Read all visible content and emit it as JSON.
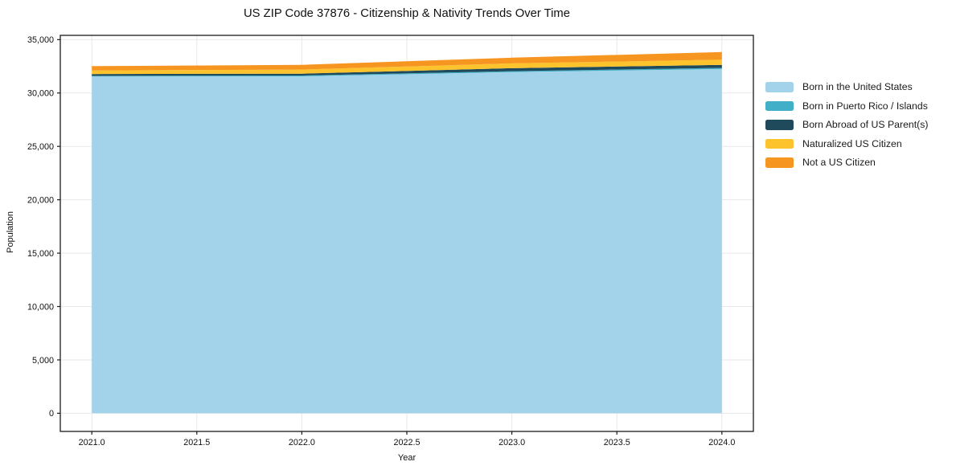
{
  "chart_data": {
    "type": "area",
    "stacked": true,
    "title": "US ZIP Code 37876 - Citizenship & Nativity Trends Over Time",
    "xlabel": "Year",
    "ylabel": "Population",
    "x": [
      2021,
      2022,
      2023,
      2024
    ],
    "series": [
      {
        "name": "Born in the United States",
        "color": "#a3d3ea",
        "values": [
          31540,
          31560,
          31950,
          32250
        ]
      },
      {
        "name": "Born in Puerto Rico / Islands",
        "color": "#41afc7",
        "values": [
          70,
          80,
          90,
          100
        ]
      },
      {
        "name": "Born Abroad of US Parent(s)",
        "color": "#1f4a5c",
        "values": [
          160,
          170,
          285,
          280
        ]
      },
      {
        "name": "Naturalized US Citizen",
        "color": "#fcc32d",
        "values": [
          340,
          385,
          450,
          490
        ]
      },
      {
        "name": "Not a US Citizen",
        "color": "#f79521",
        "values": [
          410,
          445,
          530,
          715
        ]
      }
    ],
    "xlim": [
      2020.85,
      2024.15
    ],
    "ylim": [
      -1700,
      35400
    ],
    "xticks": [
      2021.0,
      2021.5,
      2022.0,
      2022.5,
      2023.0,
      2023.5,
      2024.0
    ],
    "xtick_labels": [
      "2021.0",
      "2021.5",
      "2022.0",
      "2022.5",
      "2023.0",
      "2023.5",
      "2024.0"
    ],
    "yticks": [
      0,
      5000,
      10000,
      15000,
      20000,
      25000,
      30000,
      35000
    ],
    "ytick_labels": [
      "0",
      "5,000",
      "10,000",
      "15,000",
      "20,000",
      "25,000",
      "30,000",
      "35,000"
    ],
    "grid": true,
    "legend_position": "right",
    "colors": {
      "grid": "#e7e7e7",
      "axis": "#1a1a1a",
      "text": "#111111"
    }
  }
}
